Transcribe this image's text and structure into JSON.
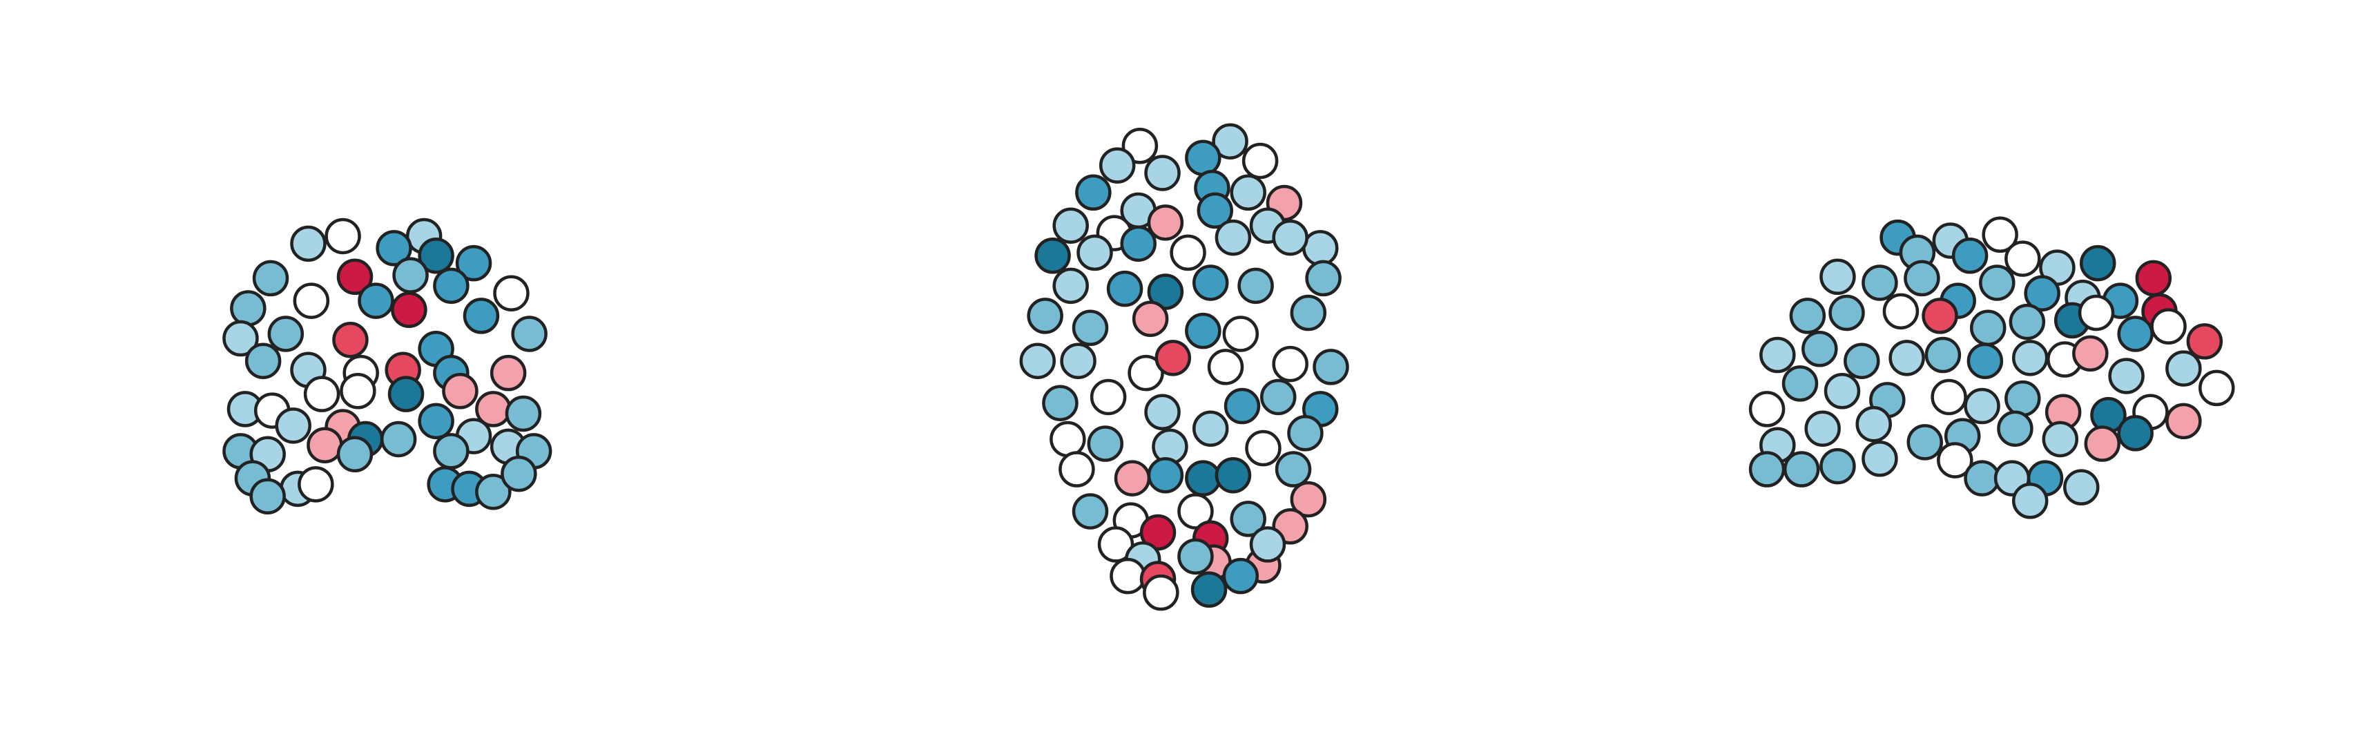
{
  "chart_data": [
    {
      "type": "scatter",
      "xlim": [
        0,
        1568
      ],
      "ylim": [
        0,
        500
      ],
      "x": [
        205,
        228,
        282,
        262,
        290,
        315,
        180,
        236,
        273,
        300,
        340,
        165,
        207,
        250,
        272,
        320,
        352,
        160,
        190,
        233,
        290,
        175,
        205,
        240,
        268,
        300,
        338,
        163,
        181,
        214,
        238,
        270,
        306,
        328,
        348,
        195,
        228,
        243,
        265,
        290,
        315,
        160,
        178,
        216,
        300,
        338,
        355,
        168,
        198,
        210,
        296,
        312,
        328,
        345,
        178,
        236
      ],
      "y": [
        338,
        343,
        343,
        335,
        330,
        325,
        315,
        316,
        317,
        310,
        305,
        295,
        300,
        300,
        294,
        290,
        278,
        275,
        278,
        274,
        268,
        260,
        254,
        252,
        254,
        252,
        252,
        228,
        227,
        238,
        240,
        238,
        240,
        228,
        225,
        217,
        216,
        208,
        208,
        220,
        210,
        200,
        198,
        204,
        200,
        203,
        200,
        182,
        175,
        178,
        178,
        175,
        173,
        185,
        170,
        198
      ],
      "colors": [
        "#a8d5e5",
        "#ffffff",
        "#a8d5e5",
        "#3e9cc0",
        "#1b7899",
        "#3e9cc0",
        "#78bcd4",
        "#cc1a44",
        "#78bcd4",
        "#3e9cc0",
        "#ffffff",
        "#78bcd4",
        "#ffffff",
        "#3e9cc0",
        "#cc1a44",
        "#3e9cc0",
        "#78bcd4",
        "#a8d5e5",
        "#78bcd4",
        "#e5485f",
        "#3e9cc0",
        "#78bcd4",
        "#a8d5e5",
        "#ffffff",
        "#e5485f",
        "#3e9cc0",
        "#f3a1ab",
        "#a8d5e5",
        "#ffffff",
        "#ffffff",
        "#ffffff",
        "#1b7899",
        "#f3a1ab",
        "#f3a1ab",
        "#78bcd4",
        "#a8d5e5",
        "#f3a1ab",
        "#1b7899",
        "#78bcd4",
        "#3e9cc0",
        "#a8d5e5",
        "#78bcd4",
        "#a8d5e5",
        "#f3a1ab",
        "#78bcd4",
        "#a8d5e5",
        "#78bcd4",
        "#78bcd4",
        "#a8d5e5",
        "#ffffff",
        "#3e9cc0",
        "#3e9cc0",
        "#78bcd4",
        "#78bcd4",
        "#78bcd4",
        "#78bcd4"
      ]
    },
    {
      "type": "scatter",
      "xlim": [
        0,
        1568
      ],
      "ylim": [
        0,
        500
      ],
      "x": [
        758,
        818,
        800,
        838,
        743,
        773,
        727,
        757,
        806,
        830,
        854,
        712,
        741,
        775,
        808,
        843,
        878,
        700,
        728,
        757,
        790,
        820,
        858,
        712,
        748,
        775,
        805,
        835,
        880,
        695,
        725,
        765,
        800,
        825,
        870,
        690,
        717,
        762,
        780,
        815,
        858,
        885,
        705,
        737,
        773,
        826,
        850,
        878,
        710,
        735,
        778,
        805,
        840,
        868,
        716,
        753,
        775,
        800,
        820,
        860,
        870,
        725,
        752,
        795,
        830,
        742,
        770,
        805,
        858,
        760,
        807,
        840,
        750,
        770,
        795,
        825,
        772,
        804,
        843
      ],
      "y": [
        403,
        406,
        395,
        393,
        390,
        385,
        372,
        360,
        375,
        372,
        365,
        350,
        345,
        352,
        360,
        350,
        335,
        330,
        332,
        338,
        332,
        342,
        342,
        310,
        308,
        306,
        312,
        310,
        315,
        290,
        282,
        288,
        280,
        278,
        292,
        260,
        260,
        252,
        262,
        256,
        258,
        256,
        232,
        236,
        226,
        230,
        236,
        228,
        208,
        205,
        203,
        215,
        202,
        212,
        188,
        182,
        184,
        182,
        184,
        188,
        168,
        160,
        154,
        160,
        155,
        138,
        146,
        142,
        150,
        128,
        126,
        124,
        117,
        115,
        130,
        117,
        106,
        108,
        138
      ],
      "colors": [
        "#ffffff",
        "#a8d5e5",
        "#3e9cc0",
        "#ffffff",
        "#a8d5e5",
        "#a8d5e5",
        "#3e9cc0",
        "#a8d5e5",
        "#3e9cc0",
        "#a8d5e5",
        "#f3a1ab",
        "#a8d5e5",
        "#ffffff",
        "#f3a1ab",
        "#3e9cc0",
        "#a8d5e5",
        "#a8d5e5",
        "#1b7899",
        "#a8d5e5",
        "#3e9cc0",
        "#ffffff",
        "#a8d5e5",
        "#a8d5e5",
        "#a8d5e5",
        "#3e9cc0",
        "#1b7899",
        "#3e9cc0",
        "#78bcd4",
        "#78bcd4",
        "#78bcd4",
        "#78bcd4",
        "#f3a1ab",
        "#3e9cc0",
        "#ffffff",
        "#78bcd4",
        "#a8d5e5",
        "#a8d5e5",
        "#ffffff",
        "#e5485f",
        "#ffffff",
        "#ffffff",
        "#78bcd4",
        "#78bcd4",
        "#ffffff",
        "#a8d5e5",
        "#3e9cc0",
        "#78bcd4",
        "#3e9cc0",
        "#ffffff",
        "#78bcd4",
        "#a8d5e5",
        "#a8d5e5",
        "#ffffff",
        "#78bcd4",
        "#ffffff",
        "#f3a1ab",
        "#3e9cc0",
        "#1b7899",
        "#1b7899",
        "#78bcd4",
        "#f3a1ab",
        "#78bcd4",
        "#ffffff",
        "#ffffff",
        "#78bcd4",
        "#ffffff",
        "#cc1a44",
        "#cc1a44",
        "#f3a1ab",
        "#a8d5e5",
        "#f3a1ab",
        "#f3a1ab",
        "#ffffff",
        "#e5485f",
        "#78bcd4",
        "#3e9cc0",
        "#ffffff",
        "#1b7899",
        "#a8d5e5"
      ]
    },
    {
      "type": "scatter",
      "xlim": [
        0,
        1568
      ],
      "ylim": [
        0,
        500
      ],
      "x": [
        1262,
        1297,
        1330,
        1275,
        1310,
        1345,
        1368,
        1395,
        1432,
        1222,
        1250,
        1278,
        1302,
        1328,
        1358,
        1385,
        1410,
        1436,
        1442,
        1202,
        1228,
        1264,
        1290,
        1322,
        1348,
        1378,
        1394,
        1420,
        1466,
        1182,
        1210,
        1238,
        1268,
        1292,
        1320,
        1350,
        1373,
        1390,
        1414,
        1452,
        1474,
        1175,
        1197,
        1225,
        1255,
        1296,
        1318,
        1345,
        1372,
        1402,
        1430,
        1452,
        1182,
        1212,
        1246,
        1280,
        1305,
        1340,
        1370,
        1398,
        1420,
        1175,
        1198,
        1222,
        1250,
        1300,
        1318,
        1338,
        1360,
        1384,
        1350
      ],
      "y": [
        342,
        340,
        344,
        332,
        330,
        328,
        322,
        325,
        315,
        316,
        312,
        315,
        300,
        312,
        305,
        302,
        300,
        293,
        283,
        290,
        292,
        293,
        290,
        282,
        286,
        287,
        292,
        278,
        273,
        264,
        268,
        260,
        262,
        264,
        260,
        262,
        261,
        265,
        250,
        255,
        242,
        228,
        245,
        240,
        234,
        236,
        230,
        235,
        226,
        224,
        226,
        220,
        204,
        215,
        218,
        206,
        210,
        215,
        208,
        205,
        212,
        188,
        188,
        190,
        195,
        194,
        182,
        182,
        182,
        176,
        167
      ],
      "colors": [
        "#3e9cc0",
        "#a8d5e5",
        "#ffffff",
        "#78bcd4",
        "#3e9cc0",
        "#ffffff",
        "#a8d5e5",
        "#1b7899",
        "#cc1a44",
        "#a8d5e5",
        "#78bcd4",
        "#78bcd4",
        "#3e9cc0",
        "#78bcd4",
        "#3e9cc0",
        "#a8d5e5",
        "#3e9cc0",
        "#cc1a44",
        "#ffffff",
        "#78bcd4",
        "#78bcd4",
        "#ffffff",
        "#e5485f",
        "#78bcd4",
        "#78bcd4",
        "#1b7899",
        "#ffffff",
        "#3e9cc0",
        "#e5485f",
        "#a8d5e5",
        "#78bcd4",
        "#78bcd4",
        "#a8d5e5",
        "#78bcd4",
        "#3e9cc0",
        "#a8d5e5",
        "#ffffff",
        "#f3a1ab",
        "#a8d5e5",
        "#a8d5e5",
        "#ffffff",
        "#ffffff",
        "#78bcd4",
        "#a8d5e5",
        "#78bcd4",
        "#ffffff",
        "#a8d5e5",
        "#78bcd4",
        "#f3a1ab",
        "#1b7899",
        "#ffffff",
        "#f3a1ab",
        "#a8d5e5",
        "#a8d5e5",
        "#a8d5e5",
        "#78bcd4",
        "#78bcd4",
        "#78bcd4",
        "#a8d5e5",
        "#f3a1ab",
        "#1b7899",
        "#78bcd4",
        "#78bcd4",
        "#78bcd4",
        "#a8d5e5",
        "#ffffff",
        "#78bcd4",
        "#a8d5e5",
        "#3e9cc0",
        "#a8d5e5",
        "#a8d5e5"
      ]
    }
  ]
}
